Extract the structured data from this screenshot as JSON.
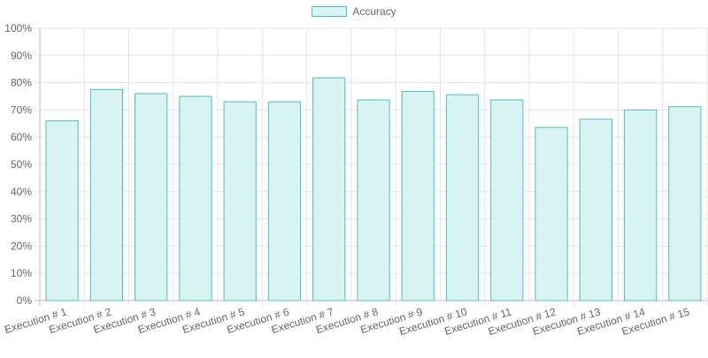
{
  "chart_data": {
    "type": "bar",
    "categories": [
      "Execution # 1",
      "Execution # 2",
      "Execution # 3",
      "Execution # 4",
      "Execution # 5",
      "Execution # 6",
      "Execution # 7",
      "Execution # 8",
      "Execution # 9",
      "Execution # 10",
      "Execution # 11",
      "Execution # 12",
      "Execution # 13",
      "Execution # 14",
      "Execution # 15"
    ],
    "series": [
      {
        "name": "Accuracy",
        "values": [
          66,
          77.5,
          76,
          75,
          73,
          73,
          81.8,
          73.7,
          76.8,
          75.6,
          73.7,
          63.6,
          66.6,
          70,
          71.2
        ]
      }
    ],
    "title": "",
    "xlabel": "",
    "ylabel": "",
    "ylim": [
      0,
      100
    ],
    "yticks": [
      "0%",
      "10%",
      "20%",
      "30%",
      "40%",
      "50%",
      "60%",
      "70%",
      "80%",
      "90%",
      "100%"
    ],
    "grid": true,
    "legend_position": "top-center",
    "colors": {
      "bar_fill": "#d9f2f2",
      "bar_border": "#4bc0c0",
      "grid": "#e5e5e5",
      "axis": "#bbbbbb",
      "text": "#666666"
    }
  }
}
